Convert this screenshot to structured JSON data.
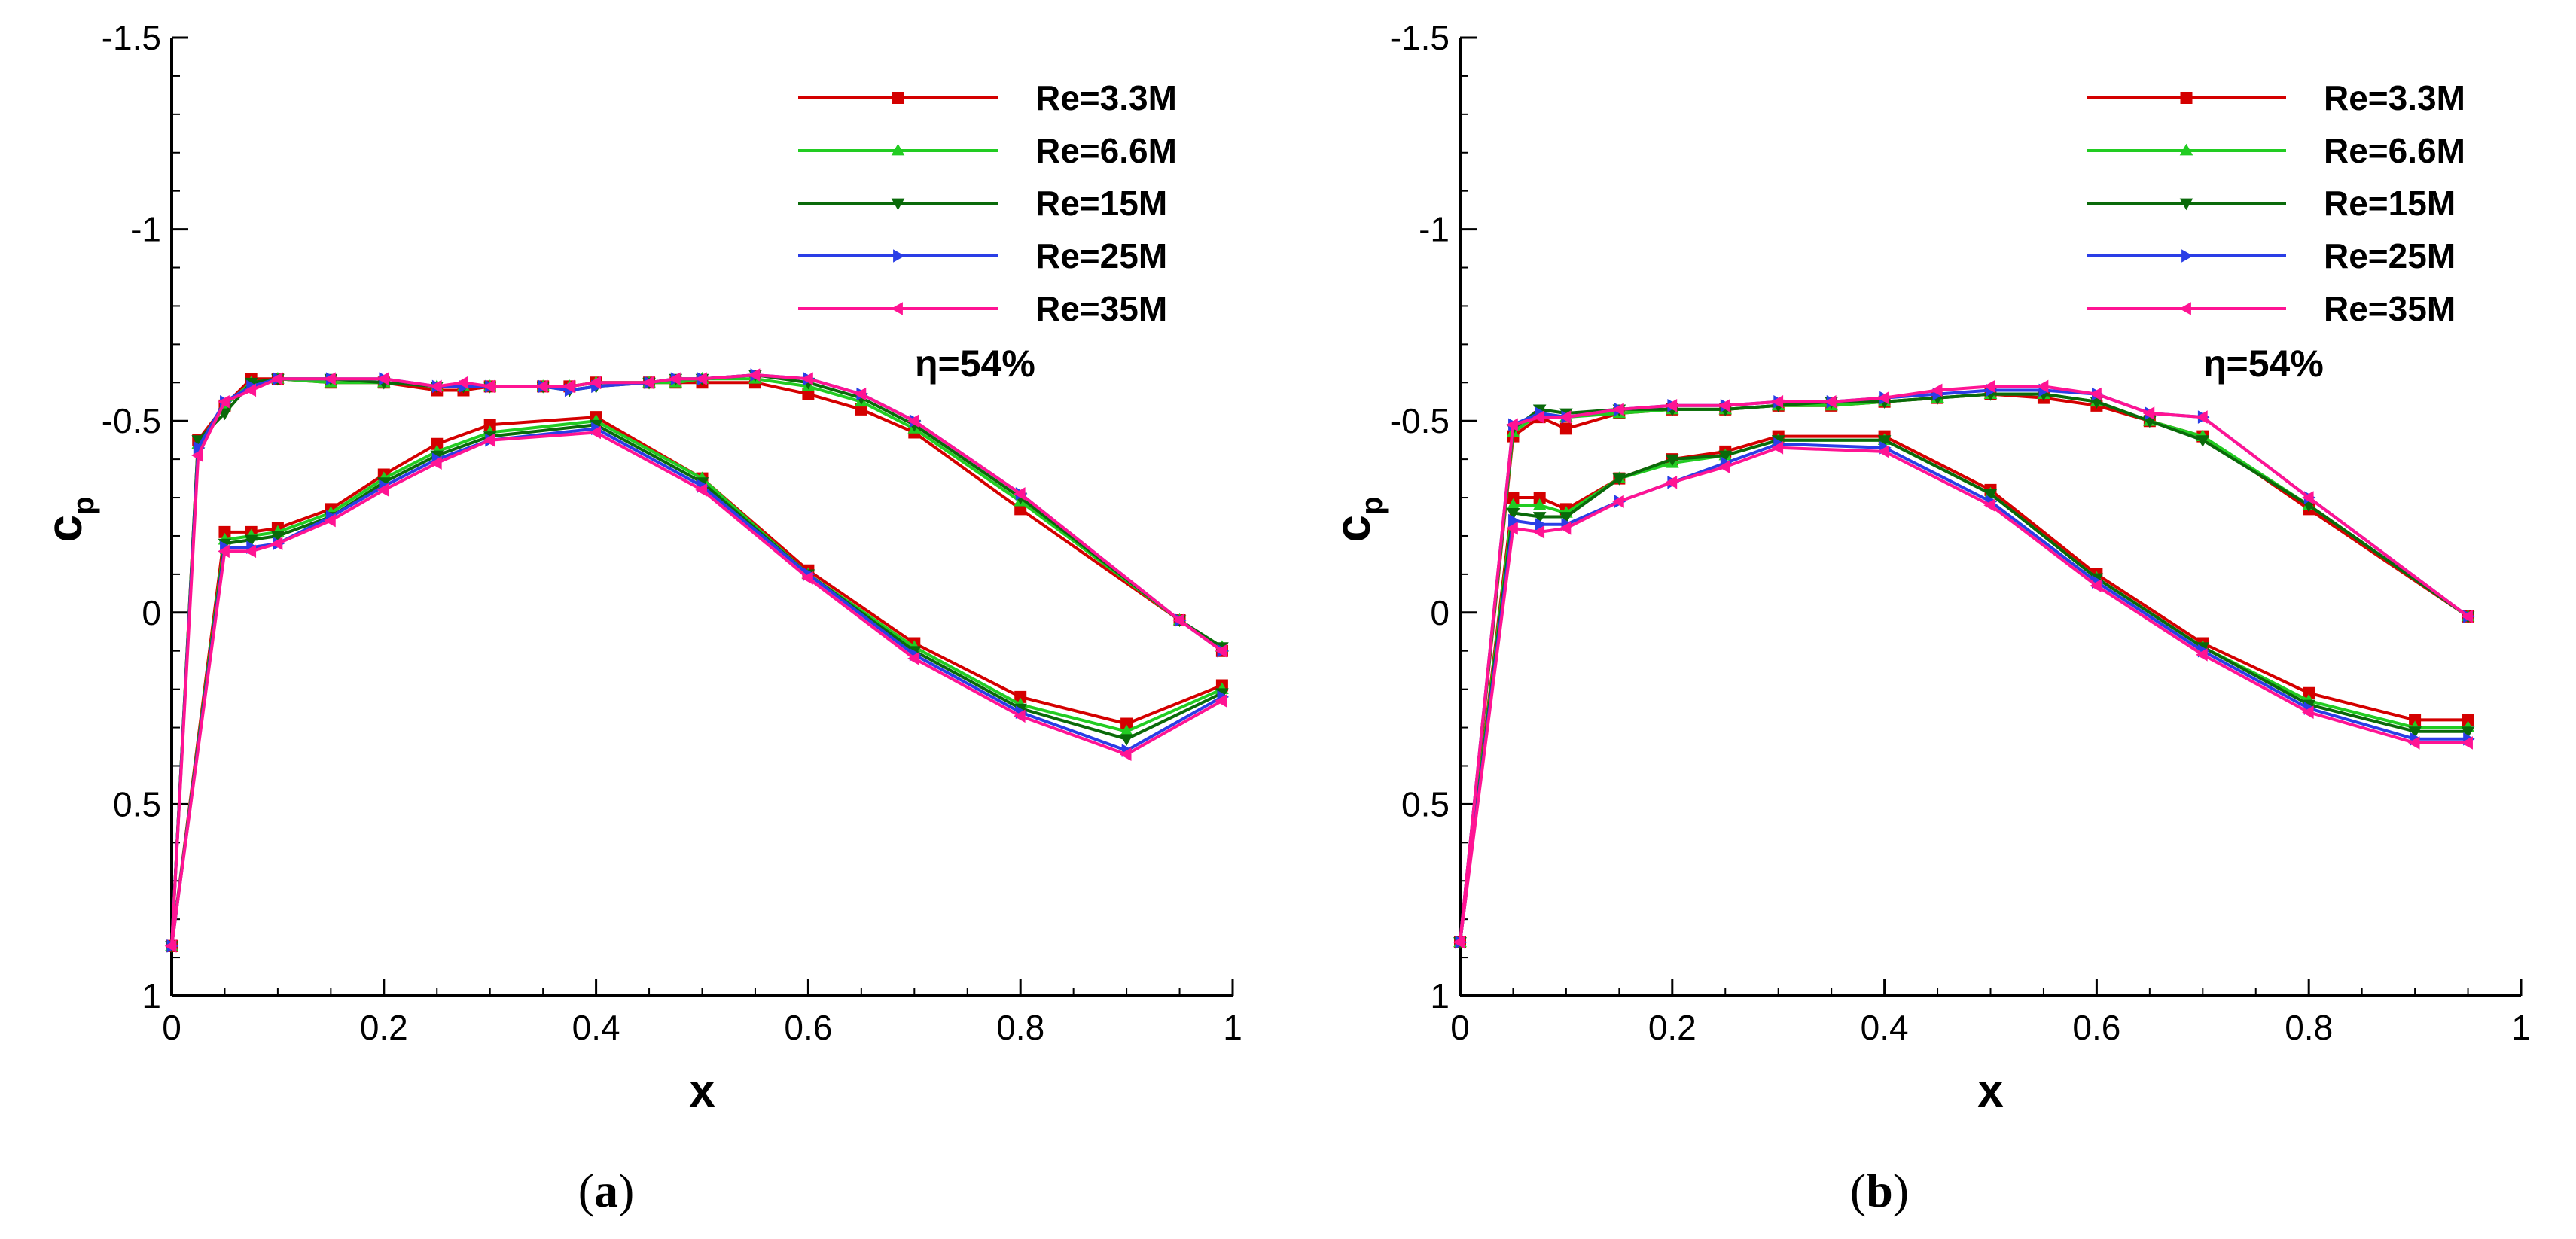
{
  "chart_data": [
    {
      "type": "line",
      "panel_label": "a",
      "caption": {
        "open": "(",
        "letter": "a",
        "close": ")"
      },
      "xlabel": "x",
      "ylabel": "c",
      "ylabel_subscript": "p",
      "xlim": [
        0,
        1
      ],
      "ylim": [
        1,
        -1.5
      ],
      "x_ticks": [
        0,
        0.2,
        0.4,
        0.6,
        0.8,
        1
      ],
      "x_tick_labels": [
        "0",
        "0.2",
        "0.4",
        "0.6",
        "0.8",
        "1"
      ],
      "y_ticks": [
        -1.5,
        -1,
        -0.5,
        0,
        0.5,
        1
      ],
      "y_tick_labels": [
        "-1.5",
        "-1",
        "-0.5",
        "0",
        "0.5",
        "1"
      ],
      "annotation": "η=54%",
      "legend_position": "top-right",
      "series": [
        {
          "name": "Re=3.3M",
          "color": "#d40000",
          "marker": "square",
          "upper": {
            "x": [
              0,
              0.025,
              0.05,
              0.075,
              0.1,
              0.15,
              0.2,
              0.25,
              0.275,
              0.3,
              0.35,
              0.375,
              0.4,
              0.45,
              0.475,
              0.5,
              0.55,
              0.6,
              0.65,
              0.7,
              0.8,
              0.95,
              0.99
            ],
            "y": [
              0.87,
              -0.45,
              -0.54,
              -0.61,
              -0.61,
              -0.6,
              -0.6,
              -0.58,
              -0.58,
              -0.59,
              -0.59,
              -0.59,
              -0.6,
              -0.6,
              -0.6,
              -0.6,
              -0.6,
              -0.57,
              -0.53,
              -0.47,
              -0.27,
              0.02,
              0.1
            ]
          },
          "lower": {
            "x": [
              0,
              0.05,
              0.075,
              0.1,
              0.15,
              0.2,
              0.25,
              0.3,
              0.4,
              0.5,
              0.6,
              0.7,
              0.8,
              0.9,
              0.99
            ],
            "y": [
              0.87,
              -0.21,
              -0.21,
              -0.22,
              -0.27,
              -0.36,
              -0.44,
              -0.49,
              -0.51,
              -0.35,
              -0.11,
              0.08,
              0.22,
              0.29,
              0.19
            ]
          }
        },
        {
          "name": "Re=6.6M",
          "color": "#22cc22",
          "marker": "triangle-up",
          "upper": {
            "x": [
              0,
              0.025,
              0.05,
              0.075,
              0.1,
              0.15,
              0.2,
              0.25,
              0.275,
              0.3,
              0.35,
              0.375,
              0.4,
              0.45,
              0.475,
              0.5,
              0.55,
              0.6,
              0.65,
              0.7,
              0.8,
              0.95,
              0.99
            ],
            "y": [
              0.87,
              -0.44,
              -0.54,
              -0.6,
              -0.61,
              -0.6,
              -0.6,
              -0.59,
              -0.59,
              -0.59,
              -0.59,
              -0.59,
              -0.6,
              -0.6,
              -0.6,
              -0.61,
              -0.61,
              -0.59,
              -0.55,
              -0.48,
              -0.29,
              0.02,
              0.09
            ]
          },
          "lower": {
            "x": [
              0,
              0.05,
              0.075,
              0.1,
              0.15,
              0.2,
              0.25,
              0.3,
              0.4,
              0.5,
              0.6,
              0.7,
              0.8,
              0.9,
              0.99
            ],
            "y": [
              0.87,
              -0.19,
              -0.2,
              -0.21,
              -0.26,
              -0.35,
              -0.42,
              -0.47,
              -0.5,
              -0.35,
              -0.1,
              0.09,
              0.24,
              0.31,
              0.2
            ]
          }
        },
        {
          "name": "Re=15M",
          "color": "#0a6a0a",
          "marker": "triangle-down",
          "upper": {
            "x": [
              0,
              0.025,
              0.05,
              0.075,
              0.1,
              0.15,
              0.2,
              0.25,
              0.275,
              0.3,
              0.35,
              0.375,
              0.4,
              0.45,
              0.475,
              0.5,
              0.55,
              0.6,
              0.65,
              0.7,
              0.8,
              0.95,
              0.99
            ],
            "y": [
              0.87,
              -0.45,
              -0.52,
              -0.6,
              -0.61,
              -0.61,
              -0.6,
              -0.59,
              -0.59,
              -0.59,
              -0.59,
              -0.58,
              -0.59,
              -0.6,
              -0.61,
              -0.61,
              -0.62,
              -0.6,
              -0.56,
              -0.49,
              -0.3,
              0.02,
              0.09
            ]
          },
          "lower": {
            "x": [
              0,
              0.05,
              0.075,
              0.1,
              0.15,
              0.2,
              0.25,
              0.3,
              0.4,
              0.5,
              0.6,
              0.7,
              0.8,
              0.9,
              0.99
            ],
            "y": [
              0.87,
              -0.18,
              -0.19,
              -0.2,
              -0.25,
              -0.34,
              -0.41,
              -0.46,
              -0.49,
              -0.34,
              -0.1,
              0.1,
              0.25,
              0.33,
              0.21
            ]
          }
        },
        {
          "name": "Re=25M",
          "color": "#2a3ee6",
          "marker": "triangle-right",
          "upper": {
            "x": [
              0,
              0.025,
              0.05,
              0.075,
              0.1,
              0.15,
              0.2,
              0.25,
              0.275,
              0.3,
              0.35,
              0.375,
              0.4,
              0.45,
              0.475,
              0.5,
              0.55,
              0.6,
              0.65,
              0.7,
              0.8,
              0.95,
              0.99
            ],
            "y": [
              0.87,
              -0.43,
              -0.55,
              -0.59,
              -0.61,
              -0.61,
              -0.61,
              -0.59,
              -0.59,
              -0.59,
              -0.59,
              -0.58,
              -0.59,
              -0.6,
              -0.61,
              -0.61,
              -0.62,
              -0.61,
              -0.57,
              -0.5,
              -0.31,
              0.02,
              0.1
            ]
          },
          "lower": {
            "x": [
              0,
              0.05,
              0.075,
              0.1,
              0.15,
              0.2,
              0.25,
              0.3,
              0.4,
              0.5,
              0.6,
              0.7,
              0.8,
              0.9,
              0.99
            ],
            "y": [
              0.87,
              -0.17,
              -0.17,
              -0.18,
              -0.25,
              -0.33,
              -0.4,
              -0.45,
              -0.48,
              -0.33,
              -0.1,
              0.11,
              0.26,
              0.36,
              0.22
            ]
          }
        },
        {
          "name": "Re=35M",
          "color": "#ff1493",
          "marker": "triangle-left",
          "upper": {
            "x": [
              0,
              0.025,
              0.05,
              0.075,
              0.1,
              0.15,
              0.2,
              0.25,
              0.275,
              0.3,
              0.35,
              0.375,
              0.4,
              0.45,
              0.475,
              0.5,
              0.55,
              0.6,
              0.65,
              0.7,
              0.8,
              0.95,
              0.99
            ],
            "y": [
              0.87,
              -0.41,
              -0.55,
              -0.58,
              -0.61,
              -0.61,
              -0.61,
              -0.59,
              -0.6,
              -0.59,
              -0.59,
              -0.59,
              -0.6,
              -0.6,
              -0.61,
              -0.61,
              -0.62,
              -0.61,
              -0.57,
              -0.5,
              -0.31,
              0.02,
              0.1
            ]
          },
          "lower": {
            "x": [
              0,
              0.05,
              0.075,
              0.1,
              0.15,
              0.2,
              0.25,
              0.3,
              0.4,
              0.5,
              0.6,
              0.7,
              0.8,
              0.9,
              0.99
            ],
            "y": [
              0.87,
              -0.16,
              -0.16,
              -0.18,
              -0.24,
              -0.32,
              -0.39,
              -0.45,
              -0.47,
              -0.32,
              -0.09,
              0.12,
              0.27,
              0.37,
              0.23
            ]
          }
        }
      ]
    },
    {
      "type": "line",
      "panel_label": "b",
      "caption": {
        "open": "(",
        "letter": "b",
        "close": ")"
      },
      "xlabel": "x",
      "ylabel": "c",
      "ylabel_subscript": "p",
      "xlim": [
        0,
        1
      ],
      "ylim": [
        1,
        -1.5
      ],
      "x_ticks": [
        0,
        0.2,
        0.4,
        0.6,
        0.8,
        1
      ],
      "x_tick_labels": [
        "0",
        "0.2",
        "0.4",
        "0.6",
        "0.8",
        "1"
      ],
      "y_ticks": [
        -1.5,
        -1,
        -0.5,
        0,
        0.5,
        1
      ],
      "y_tick_labels": [
        "-1.5",
        "-1",
        "-0.5",
        "0",
        "0.5",
        "1"
      ],
      "annotation": "η=54%",
      "legend_position": "top-right",
      "series": [
        {
          "name": "Re=3.3M",
          "color": "#d40000",
          "marker": "square",
          "upper": {
            "x": [
              0,
              0.05,
              0.075,
              0.1,
              0.15,
              0.2,
              0.25,
              0.3,
              0.35,
              0.4,
              0.45,
              0.5,
              0.55,
              0.6,
              0.65,
              0.7,
              0.8,
              0.95
            ],
            "y": [
              0.86,
              -0.46,
              -0.51,
              -0.48,
              -0.52,
              -0.53,
              -0.53,
              -0.54,
              -0.54,
              -0.55,
              -0.56,
              -0.57,
              -0.56,
              -0.54,
              -0.5,
              -0.46,
              -0.27,
              0.01
            ]
          },
          "lower": {
            "x": [
              0,
              0.05,
              0.075,
              0.1,
              0.15,
              0.2,
              0.25,
              0.3,
              0.4,
              0.5,
              0.6,
              0.7,
              0.8,
              0.9,
              0.95
            ],
            "y": [
              0.86,
              -0.3,
              -0.3,
              -0.27,
              -0.35,
              -0.4,
              -0.42,
              -0.46,
              -0.46,
              -0.32,
              -0.1,
              0.08,
              0.21,
              0.28,
              0.28
            ]
          }
        },
        {
          "name": "Re=6.6M",
          "color": "#22cc22",
          "marker": "triangle-up",
          "upper": {
            "x": [
              0,
              0.05,
              0.075,
              0.1,
              0.15,
              0.2,
              0.25,
              0.3,
              0.35,
              0.4,
              0.45,
              0.5,
              0.55,
              0.6,
              0.65,
              0.7,
              0.8,
              0.95
            ],
            "y": [
              0.86,
              -0.47,
              -0.52,
              -0.51,
              -0.52,
              -0.53,
              -0.53,
              -0.54,
              -0.54,
              -0.55,
              -0.56,
              -0.57,
              -0.57,
              -0.55,
              -0.5,
              -0.46,
              -0.28,
              0.01
            ]
          },
          "lower": {
            "x": [
              0,
              0.05,
              0.075,
              0.1,
              0.15,
              0.2,
              0.25,
              0.3,
              0.4,
              0.5,
              0.6,
              0.7,
              0.8,
              0.9,
              0.95
            ],
            "y": [
              0.86,
              -0.28,
              -0.28,
              -0.26,
              -0.35,
              -0.39,
              -0.41,
              -0.45,
              -0.45,
              -0.31,
              -0.09,
              0.09,
              0.23,
              0.3,
              0.3
            ]
          }
        },
        {
          "name": "Re=15M",
          "color": "#0a6a0a",
          "marker": "triangle-down",
          "upper": {
            "x": [
              0,
              0.05,
              0.075,
              0.1,
              0.15,
              0.2,
              0.25,
              0.3,
              0.35,
              0.4,
              0.45,
              0.5,
              0.55,
              0.6,
              0.65,
              0.7,
              0.8,
              0.95
            ],
            "y": [
              0.86,
              -0.48,
              -0.53,
              -0.52,
              -0.53,
              -0.53,
              -0.53,
              -0.54,
              -0.55,
              -0.55,
              -0.56,
              -0.57,
              -0.57,
              -0.55,
              -0.5,
              -0.45,
              -0.28,
              0.01
            ]
          },
          "lower": {
            "x": [
              0,
              0.05,
              0.075,
              0.1,
              0.15,
              0.2,
              0.25,
              0.3,
              0.4,
              0.5,
              0.6,
              0.7,
              0.8,
              0.9,
              0.95
            ],
            "y": [
              0.86,
              -0.26,
              -0.25,
              -0.25,
              -0.35,
              -0.4,
              -0.41,
              -0.45,
              -0.45,
              -0.31,
              -0.09,
              0.09,
              0.24,
              0.31,
              0.31
            ]
          }
        },
        {
          "name": "Re=25M",
          "color": "#2a3ee6",
          "marker": "triangle-right",
          "upper": {
            "x": [
              0,
              0.05,
              0.075,
              0.1,
              0.15,
              0.2,
              0.25,
              0.3,
              0.35,
              0.4,
              0.45,
              0.5,
              0.55,
              0.6,
              0.65,
              0.7,
              0.8,
              0.95
            ],
            "y": [
              0.86,
              -0.49,
              -0.52,
              -0.51,
              -0.53,
              -0.54,
              -0.54,
              -0.55,
              -0.55,
              -0.56,
              -0.57,
              -0.58,
              -0.58,
              -0.57,
              -0.52,
              -0.51,
              -0.3,
              0.01
            ]
          },
          "lower": {
            "x": [
              0,
              0.05,
              0.075,
              0.1,
              0.15,
              0.2,
              0.25,
              0.3,
              0.4,
              0.5,
              0.6,
              0.7,
              0.8,
              0.9,
              0.95
            ],
            "y": [
              0.86,
              -0.24,
              -0.23,
              -0.23,
              -0.29,
              -0.34,
              -0.39,
              -0.44,
              -0.43,
              -0.29,
              -0.08,
              0.1,
              0.25,
              0.33,
              0.33
            ]
          }
        },
        {
          "name": "Re=35M",
          "color": "#ff1493",
          "marker": "triangle-left",
          "upper": {
            "x": [
              0,
              0.05,
              0.075,
              0.1,
              0.15,
              0.2,
              0.25,
              0.3,
              0.35,
              0.4,
              0.45,
              0.5,
              0.55,
              0.6,
              0.65,
              0.7,
              0.8,
              0.95
            ],
            "y": [
              0.86,
              -0.49,
              -0.51,
              -0.51,
              -0.53,
              -0.54,
              -0.54,
              -0.55,
              -0.55,
              -0.56,
              -0.58,
              -0.59,
              -0.59,
              -0.57,
              -0.52,
              -0.51,
              -0.3,
              0.01
            ]
          },
          "lower": {
            "x": [
              0,
              0.05,
              0.075,
              0.1,
              0.15,
              0.2,
              0.25,
              0.3,
              0.4,
              0.5,
              0.6,
              0.7,
              0.8,
              0.9,
              0.95
            ],
            "y": [
              0.86,
              -0.22,
              -0.21,
              -0.22,
              -0.29,
              -0.34,
              -0.38,
              -0.43,
              -0.42,
              -0.28,
              -0.07,
              0.11,
              0.26,
              0.34,
              0.34
            ]
          }
        }
      ]
    }
  ]
}
